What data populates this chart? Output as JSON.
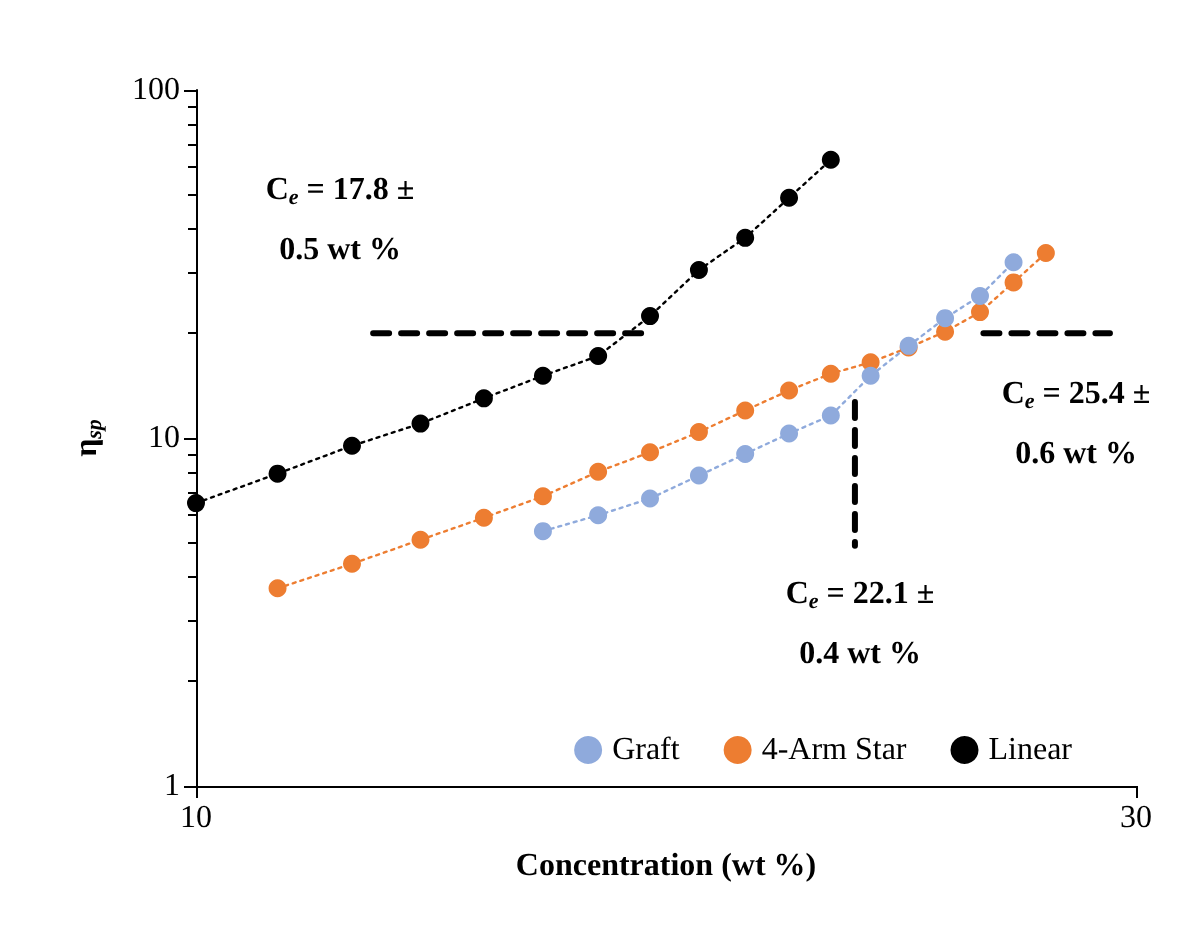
{
  "chart_data": {
    "type": "line",
    "xlabel": "Concentration (wt %)",
    "ylabel": "η$_{sp}$",
    "log": "xy",
    "xlim": [
      10,
      30
    ],
    "xticks": [
      10,
      30
    ],
    "ylim": [
      1,
      100
    ],
    "yticks": [
      1,
      10,
      100
    ],
    "grid": false,
    "legend": "bottom right",
    "marker": "circle",
    "line_style": "dotted",
    "series": [
      {
        "name": "Graft",
        "color": "#8faadc",
        "x": [
          15,
          16,
          17,
          18,
          19,
          20,
          21,
          22,
          23,
          24,
          25,
          26
        ],
        "values": [
          5.4,
          6.0,
          6.7,
          7.8,
          9.0,
          10.3,
          11.6,
          15.1,
          18.4,
          22.1,
          25.6,
          32
        ]
      },
      {
        "name": "4-Arm Star",
        "color": "#ed7d31",
        "x": [
          11,
          12,
          13,
          14,
          15,
          16,
          17,
          18,
          19,
          20,
          21,
          22,
          23,
          24,
          25,
          26,
          27
        ],
        "values": [
          3.7,
          4.35,
          5.1,
          5.9,
          6.8,
          8.0,
          9.1,
          10.4,
          12.0,
          13.7,
          15.3,
          16.5,
          18.2,
          20.2,
          23.0,
          28,
          34
        ]
      },
      {
        "name": "Linear",
        "color": "#000000",
        "x": [
          10,
          11,
          12,
          13,
          14,
          15,
          16,
          17,
          18,
          19,
          20,
          21
        ],
        "values": [
          6.5,
          7.9,
          9.5,
          11.0,
          13.0,
          15.1,
          17.2,
          22.4,
          30.4,
          37.6,
          49,
          63
        ]
      },
      {
        "color": "#000000",
        "line_style": "dashed",
        "marker": "none",
        "x": [
          12.3,
          16.9
        ],
        "values": [
          20,
          20
        ]
      },
      {
        "color": "#000000",
        "line_style": "dashed",
        "marker": "none",
        "x": [
          21.6,
          21.6
        ],
        "values": [
          12.7,
          4.9
        ]
      },
      {
        "color": "#000000",
        "line_style": "dashed",
        "marker": "none",
        "x": [
          25.1,
          29.1
        ],
        "values": [
          20,
          20
        ]
      }
    ],
    "annotations": [
      "C$_{e}$ = 17.8 ± 0.5 wt %",
      "C$_{e}$ = 25.4 ± 0.6 wt %",
      "C$_{e}$ = 22.1 ± 0.4 wt %"
    ]
  }
}
